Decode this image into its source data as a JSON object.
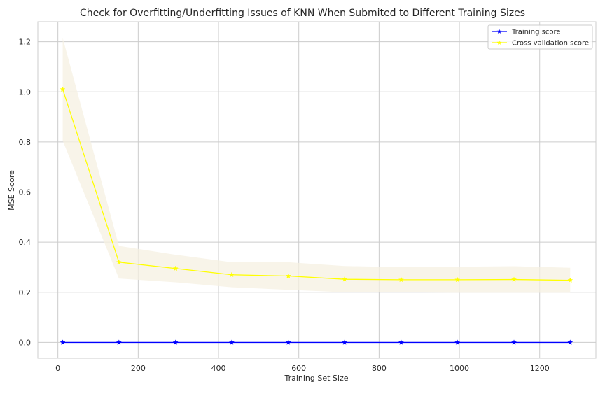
{
  "chart_data": {
    "type": "line",
    "title": "Check for Overfitting/Underfitting Issues of KNN When Submited to Different Training Sizes",
    "xlabel": "Training Set Size",
    "ylabel": "MSE Score",
    "xlim": [
      -50,
      1340
    ],
    "ylim": [
      -0.063,
      1.28
    ],
    "x_ticks": [
      0,
      200,
      400,
      600,
      800,
      1000,
      1200
    ],
    "x_tick_labels": [
      "0",
      "200",
      "400",
      "600",
      "800",
      "1000",
      "1200"
    ],
    "y_ticks": [
      0.0,
      0.2,
      0.4,
      0.6,
      0.8,
      1.0,
      1.2
    ],
    "y_tick_labels": [
      "0.0",
      "0.2",
      "0.4",
      "0.6",
      "0.8",
      "1.0",
      "1.2"
    ],
    "grid": true,
    "legend_position": "top-right",
    "x": [
      12,
      152,
      293,
      433,
      574,
      714,
      855,
      995,
      1136,
      1276
    ],
    "series": [
      {
        "name": "Training score",
        "color": "#0000ff",
        "marker": "star",
        "values": [
          0.0,
          0.0,
          0.0,
          0.0,
          0.0,
          0.0,
          0.0,
          0.0,
          0.0,
          0.0
        ]
      },
      {
        "name": "Cross-validation score",
        "color": "#ffff00",
        "marker": "star",
        "values": [
          1.01,
          0.32,
          0.295,
          0.27,
          0.265,
          0.252,
          0.25,
          0.25,
          0.251,
          0.248
        ],
        "band_lower": [
          0.805,
          0.255,
          0.24,
          0.22,
          0.21,
          0.2,
          0.2,
          0.198,
          0.198,
          0.198
        ],
        "band_upper": [
          1.215,
          0.385,
          0.35,
          0.32,
          0.32,
          0.305,
          0.3,
          0.302,
          0.304,
          0.298
        ],
        "band_color": "#f5f0e1"
      }
    ]
  }
}
